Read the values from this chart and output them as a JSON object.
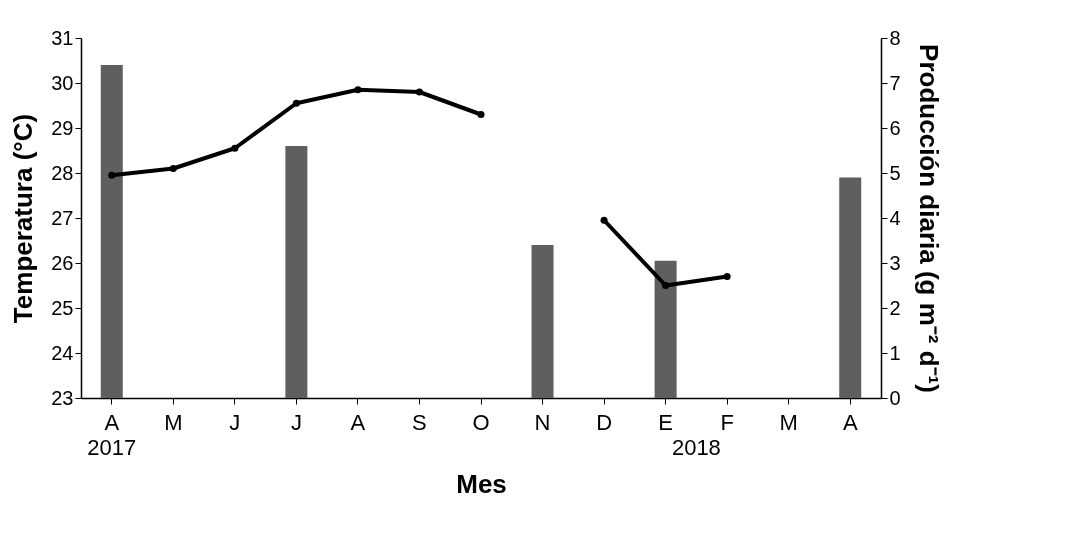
{
  "chart_data": {
    "type": "bar",
    "xlabel": "Mes",
    "ylabel": "Temperatura (°C)",
    "y2label": "Producción diaria (g m⁻² d⁻¹)",
    "categories": [
      "A",
      "M",
      "J",
      "J",
      "A",
      "S",
      "O",
      "N",
      "D",
      "E",
      "F",
      "M",
      "A"
    ],
    "series": [
      {
        "axis": "y2",
        "color": "#5f5f5f",
        "values": [
          7.4,
          null,
          null,
          5.6,
          null,
          null,
          null,
          3.4,
          null,
          3.05,
          null,
          null,
          4.9
        ]
      },
      {
        "type": "line",
        "axis": "y",
        "color": "#000000",
        "marker": "circle",
        "values": [
          27.95,
          28.1,
          28.55,
          29.55,
          29.85,
          29.8,
          29.3,
          null,
          26.95,
          25.5,
          25.7,
          null,
          null
        ]
      }
    ],
    "ylim": [
      23,
      31
    ],
    "yticks": [
      23,
      24,
      25,
      26,
      27,
      28,
      29,
      30,
      31
    ],
    "y2lim": [
      0,
      8
    ],
    "y2ticks": [
      0,
      1,
      2,
      3,
      4,
      5,
      6,
      7,
      8
    ],
    "annotations": [
      "2017",
      "2018"
    ],
    "grid": false
  }
}
